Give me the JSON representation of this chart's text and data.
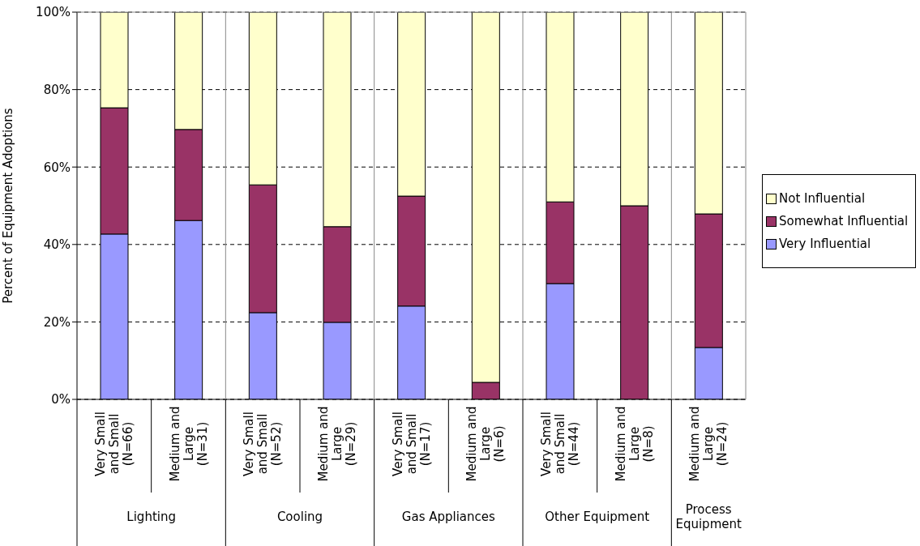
{
  "chart_data": {
    "type": "bar",
    "stacked": true,
    "ylabel": "Percent of Equipment Adoptions",
    "categories": [
      "Very Small and Small (N=66)",
      "Medium and Large (N=31)",
      "Very Small and Small (N=52)",
      "Medium and Large (N=29)",
      "Very Small and Small (N=17)",
      "Medium and Large (N=6)",
      "Very Small and Small (N=44)",
      "Medium and Large (N=8)",
      "Medium and Large (N=24)"
    ],
    "series": [
      {
        "name": "Very Influential",
        "color": "#9999ff",
        "values": [
          42.7,
          46.2,
          22.4,
          19.9,
          24.1,
          0,
          29.9,
          0,
          13.4
        ]
      },
      {
        "name": "Somewhat Influential",
        "color": "#993366",
        "values": [
          32.6,
          23.5,
          33,
          24.7,
          28.4,
          4.4,
          21.1,
          50,
          34.5
        ]
      },
      {
        "name": "Not Influential",
        "color": "#ffffcc",
        "values": [
          24.7,
          30.3,
          44.6,
          55.4,
          47.5,
          95.6,
          49,
          50,
          52.1
        ]
      }
    ],
    "ylim": [
      0,
      100
    ],
    "yticks": [
      {
        "value": 0,
        "label": "0%"
      },
      {
        "value": 20,
        "label": "20%"
      },
      {
        "value": 40,
        "label": "40%"
      },
      {
        "value": 60,
        "label": "60%"
      },
      {
        "value": 80,
        "label": "80%"
      },
      {
        "value": 100,
        "label": "100%"
      }
    ],
    "grid": "y",
    "legend": "right",
    "annotations": [
      "Lighting",
      "Cooling",
      "Gas Appliances",
      "Other Equipment",
      "Process Equipment"
    ]
  }
}
